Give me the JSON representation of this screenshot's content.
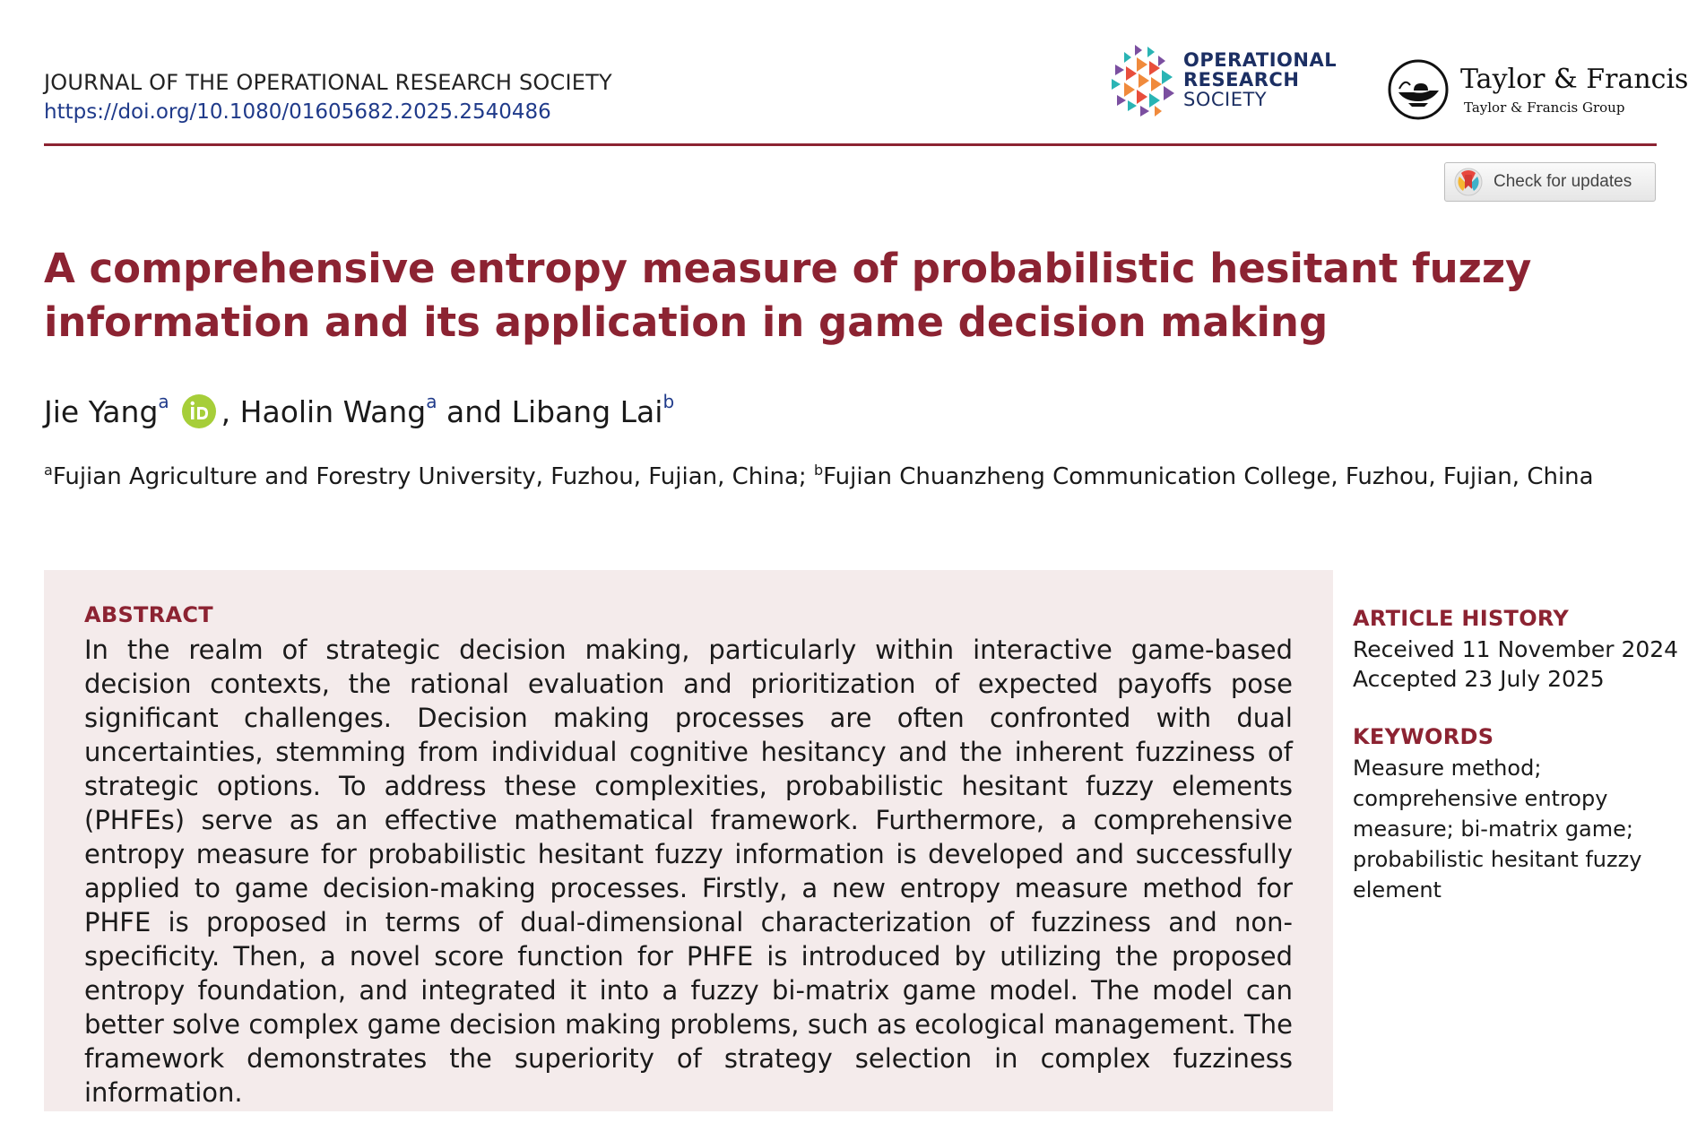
{
  "header": {
    "journal_name": "JOURNAL OF THE OPERATIONAL RESEARCH SOCIETY",
    "doi_url": "https://doi.org/10.1080/01605682.2025.2540486",
    "ors_logo": {
      "line1": "OPERATIONAL",
      "line2": "RESEARCH",
      "line3": "SOCIETY",
      "icon": "ors-pinwheel-logo"
    },
    "publisher_logo": {
      "name": "Taylor & Francis",
      "group": "Taylor & Francis Group",
      "icon": "oil-lamp-logo"
    },
    "check_updates": {
      "label": "Check for updates",
      "icon": "crossmark-icon"
    }
  },
  "article": {
    "title": "A comprehensive entropy measure of probabilistic hesitant fuzzy information and its application in game decision making",
    "authors": [
      {
        "name": "Jie Yang",
        "affil": "a",
        "orcid": true
      },
      {
        "name": "Haolin Wang",
        "affil": "a"
      },
      {
        "name": "Libang Lai",
        "affil": "b"
      }
    ],
    "author_sep1": ", ",
    "author_sep2": " and ",
    "affiliations": [
      {
        "mark": "a",
        "text": "Fujian Agriculture and Forestry University, Fuzhou, Fujian, China; "
      },
      {
        "mark": "b",
        "text": "Fujian Chuanzheng Communication College, Fuzhou, Fujian, China"
      }
    ]
  },
  "abstract": {
    "heading": "ABSTRACT",
    "text": "In the realm of strategic decision making, particularly within interactive game-based decision contexts, the rational evaluation and prioritization of expected payoffs pose significant challenges. Decision making processes are often confronted with dual uncertainties, stemming from individual cognitive hesitancy and the inherent fuzziness of strategic options. To address these complexities, probabilistic hesitant fuzzy elements (PHFEs) serve as an effective mathematical framework. Furthermore, a comprehensive entropy measure for probabilistic hesitant fuzzy information is developed and successfully applied to game decision-making processes. Firstly, a new entropy measure method for PHFE is proposed in terms of dual-dimensional characterization of fuzziness and non-specificity. Then, a novel score function for PHFE is introduced by utilizing the proposed entropy foundation, and integrated it into a fuzzy bi-matrix game model. The model can better solve complex game decision making problems, such as ecological management. The framework demonstrates the superiority of strategy selection in complex fuzziness information."
  },
  "sidebar": {
    "history_heading": "ARTICLE HISTORY",
    "received": "Received 11 November 2024",
    "accepted": "Accepted 23 July 2025",
    "keywords_heading": "KEYWORDS",
    "keywords": "Measure method; comprehensive entropy measure; bi-matrix game; probabilistic hesitant fuzzy element"
  },
  "colors": {
    "accent": "#8c2332",
    "link": "#1f3a8a",
    "abstract_bg": "#f4ebeb",
    "orcid": "#a6ce39"
  }
}
